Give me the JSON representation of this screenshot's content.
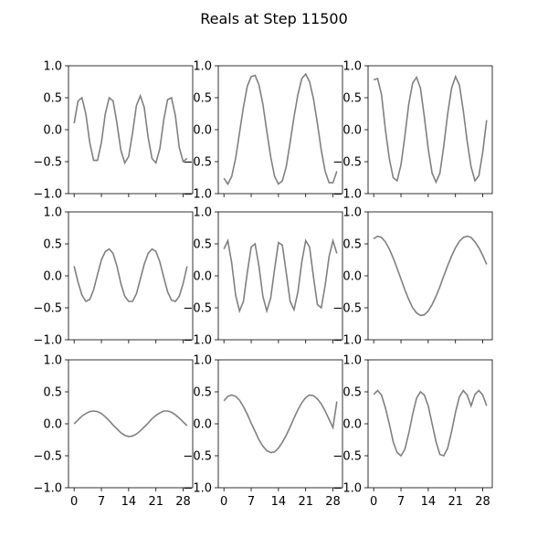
{
  "figure": {
    "title": "Reals at Step 11500"
  },
  "chart_data": [
    {
      "type": "line",
      "title": "",
      "xlabel": "",
      "ylabel": "",
      "xlim": [
        0,
        29
      ],
      "ylim": [
        -1.0,
        1.0
      ],
      "yticks": [
        "1.0",
        "0.5",
        "0.0",
        "−0.5",
        "−1.0"
      ],
      "xticks": [],
      "line_color": "#808080",
      "series": [
        {
          "values": [
            0.1,
            0.45,
            0.5,
            0.25,
            -0.2,
            -0.48,
            -0.48,
            -0.2,
            0.25,
            0.5,
            0.45,
            0.1,
            -0.32,
            -0.52,
            -0.42,
            -0.05,
            0.38,
            0.53,
            0.35,
            -0.12,
            -0.45,
            -0.52,
            -0.3,
            0.15,
            0.47,
            0.5,
            0.22,
            -0.28,
            -0.5,
            -0.45
          ]
        }
      ]
    },
    {
      "type": "line",
      "title": "",
      "xlabel": "",
      "ylabel": "",
      "xlim": [
        0,
        29
      ],
      "ylim": [
        -1.0,
        1.0
      ],
      "yticks": [
        "1.0",
        "0.5",
        "0.0",
        "−0.5",
        "−1.0"
      ],
      "xticks": [],
      "line_color": "#808080",
      "series": [
        {
          "values": [
            -0.76,
            -0.85,
            -0.73,
            -0.45,
            -0.05,
            0.35,
            0.68,
            0.83,
            0.85,
            0.7,
            0.4,
            -0.02,
            -0.42,
            -0.73,
            -0.85,
            -0.8,
            -0.58,
            -0.2,
            0.2,
            0.55,
            0.8,
            0.87,
            0.75,
            0.48,
            0.1,
            -0.32,
            -0.65,
            -0.83,
            -0.83,
            -0.65
          ]
        }
      ]
    },
    {
      "type": "line",
      "title": "",
      "xlabel": "",
      "ylabel": "",
      "xlim": [
        0,
        29
      ],
      "ylim": [
        -1.0,
        1.0
      ],
      "yticks": [
        "1.0",
        "0.5",
        "0.0",
        "−0.5",
        "−1.0"
      ],
      "xticks": [],
      "line_color": "#808080",
      "series": [
        {
          "values": [
            0.78,
            0.8,
            0.55,
            0.0,
            -0.45,
            -0.75,
            -0.8,
            -0.55,
            -0.1,
            0.4,
            0.73,
            0.82,
            0.65,
            0.2,
            -0.3,
            -0.68,
            -0.82,
            -0.68,
            -0.25,
            0.25,
            0.65,
            0.83,
            0.7,
            0.3,
            -0.18,
            -0.58,
            -0.8,
            -0.72,
            -0.35,
            0.15
          ]
        }
      ]
    },
    {
      "type": "line",
      "title": "",
      "xlabel": "",
      "ylabel": "",
      "xlim": [
        0,
        29
      ],
      "ylim": [
        -1.0,
        1.0
      ],
      "yticks": [
        "1.0",
        "0.5",
        "0.0",
        "−0.5",
        "−1.0"
      ],
      "xticks": [],
      "line_color": "#808080",
      "series": [
        {
          "values": [
            0.15,
            -0.1,
            -0.3,
            -0.4,
            -0.37,
            -0.22,
            0.02,
            0.25,
            0.38,
            0.42,
            0.35,
            0.15,
            -0.12,
            -0.32,
            -0.4,
            -0.4,
            -0.28,
            -0.05,
            0.18,
            0.35,
            0.42,
            0.38,
            0.22,
            -0.02,
            -0.25,
            -0.38,
            -0.4,
            -0.32,
            -0.12,
            0.15
          ]
        }
      ]
    },
    {
      "type": "line",
      "title": "",
      "xlabel": "",
      "ylabel": "",
      "xlim": [
        0,
        29
      ],
      "ylim": [
        -1.0,
        1.0
      ],
      "yticks": [
        "1.0",
        "0.5",
        "0.0",
        "−0.5",
        "−1.0"
      ],
      "xticks": [],
      "line_color": "#808080",
      "series": [
        {
          "values": [
            0.42,
            0.55,
            0.2,
            -0.3,
            -0.55,
            -0.4,
            0.05,
            0.45,
            0.5,
            0.15,
            -0.32,
            -0.55,
            -0.35,
            0.1,
            0.52,
            0.48,
            0.05,
            -0.4,
            -0.53,
            -0.25,
            0.22,
            0.55,
            0.45,
            -0.02,
            -0.45,
            -0.5,
            -0.15,
            0.3,
            0.55,
            0.35
          ]
        }
      ]
    },
    {
      "type": "line",
      "title": "",
      "xlabel": "",
      "ylabel": "",
      "xlim": [
        0,
        29
      ],
      "ylim": [
        -1.0,
        1.0
      ],
      "yticks": [
        "1.0",
        "0.5",
        "0.0",
        "−0.5",
        "−1.0"
      ],
      "xticks": [],
      "line_color": "#808080",
      "series": [
        {
          "values": [
            0.58,
            0.62,
            0.6,
            0.53,
            0.42,
            0.28,
            0.12,
            -0.05,
            -0.22,
            -0.37,
            -0.5,
            -0.58,
            -0.62,
            -0.61,
            -0.55,
            -0.45,
            -0.32,
            -0.17,
            0.0,
            0.16,
            0.31,
            0.44,
            0.54,
            0.6,
            0.62,
            0.6,
            0.53,
            0.44,
            0.32,
            0.18
          ]
        }
      ]
    },
    {
      "type": "line",
      "title": "",
      "xlabel": "",
      "ylabel": "",
      "xlim": [
        0,
        29
      ],
      "ylim": [
        -1.0,
        1.0
      ],
      "yticks": [
        "1.0",
        "0.5",
        "0.0",
        "−0.5",
        "−1.0"
      ],
      "xticks": [
        "0",
        "7",
        "14",
        "21",
        "28"
      ],
      "line_color": "#808080",
      "series": [
        {
          "values": [
            0.0,
            0.06,
            0.12,
            0.16,
            0.19,
            0.2,
            0.19,
            0.16,
            0.11,
            0.05,
            -0.02,
            -0.08,
            -0.14,
            -0.18,
            -0.2,
            -0.19,
            -0.16,
            -0.11,
            -0.05,
            0.01,
            0.08,
            0.13,
            0.17,
            0.2,
            0.2,
            0.18,
            0.14,
            0.09,
            0.03,
            -0.03
          ]
        }
      ]
    },
    {
      "type": "line",
      "title": "",
      "xlabel": "",
      "ylabel": "",
      "xlim": [
        0,
        29
      ],
      "ylim": [
        -1.0,
        1.0
      ],
      "yticks": [
        "1.0",
        "0.5",
        "0.0",
        "−0.5",
        "−1.0"
      ],
      "xticks": [
        "0",
        "7",
        "14",
        "21",
        "28"
      ],
      "line_color": "#808080",
      "series": [
        {
          "values": [
            0.36,
            0.43,
            0.45,
            0.43,
            0.37,
            0.27,
            0.15,
            0.01,
            -0.12,
            -0.25,
            -0.35,
            -0.42,
            -0.45,
            -0.44,
            -0.38,
            -0.29,
            -0.18,
            -0.05,
            0.09,
            0.22,
            0.33,
            0.41,
            0.45,
            0.44,
            0.39,
            0.31,
            0.2,
            0.07,
            -0.06,
            0.35
          ]
        }
      ]
    },
    {
      "type": "line",
      "title": "",
      "xlabel": "",
      "ylabel": "",
      "xlim": [
        0,
        29
      ],
      "ylim": [
        -1.0,
        1.0
      ],
      "yticks": [
        "1.0",
        "0.5",
        "0.0",
        "−0.5",
        "−1.0"
      ],
      "xticks": [
        "0",
        "7",
        "14",
        "21",
        "28"
      ],
      "line_color": "#808080",
      "series": [
        {
          "values": [
            0.46,
            0.52,
            0.45,
            0.25,
            0.0,
            -0.28,
            -0.45,
            -0.5,
            -0.4,
            -0.15,
            0.15,
            0.4,
            0.5,
            0.45,
            0.28,
            0.0,
            -0.28,
            -0.48,
            -0.5,
            -0.38,
            -0.12,
            0.18,
            0.42,
            0.52,
            0.45,
            0.28,
            0.46,
            0.52,
            0.45,
            0.28
          ]
        }
      ]
    }
  ]
}
